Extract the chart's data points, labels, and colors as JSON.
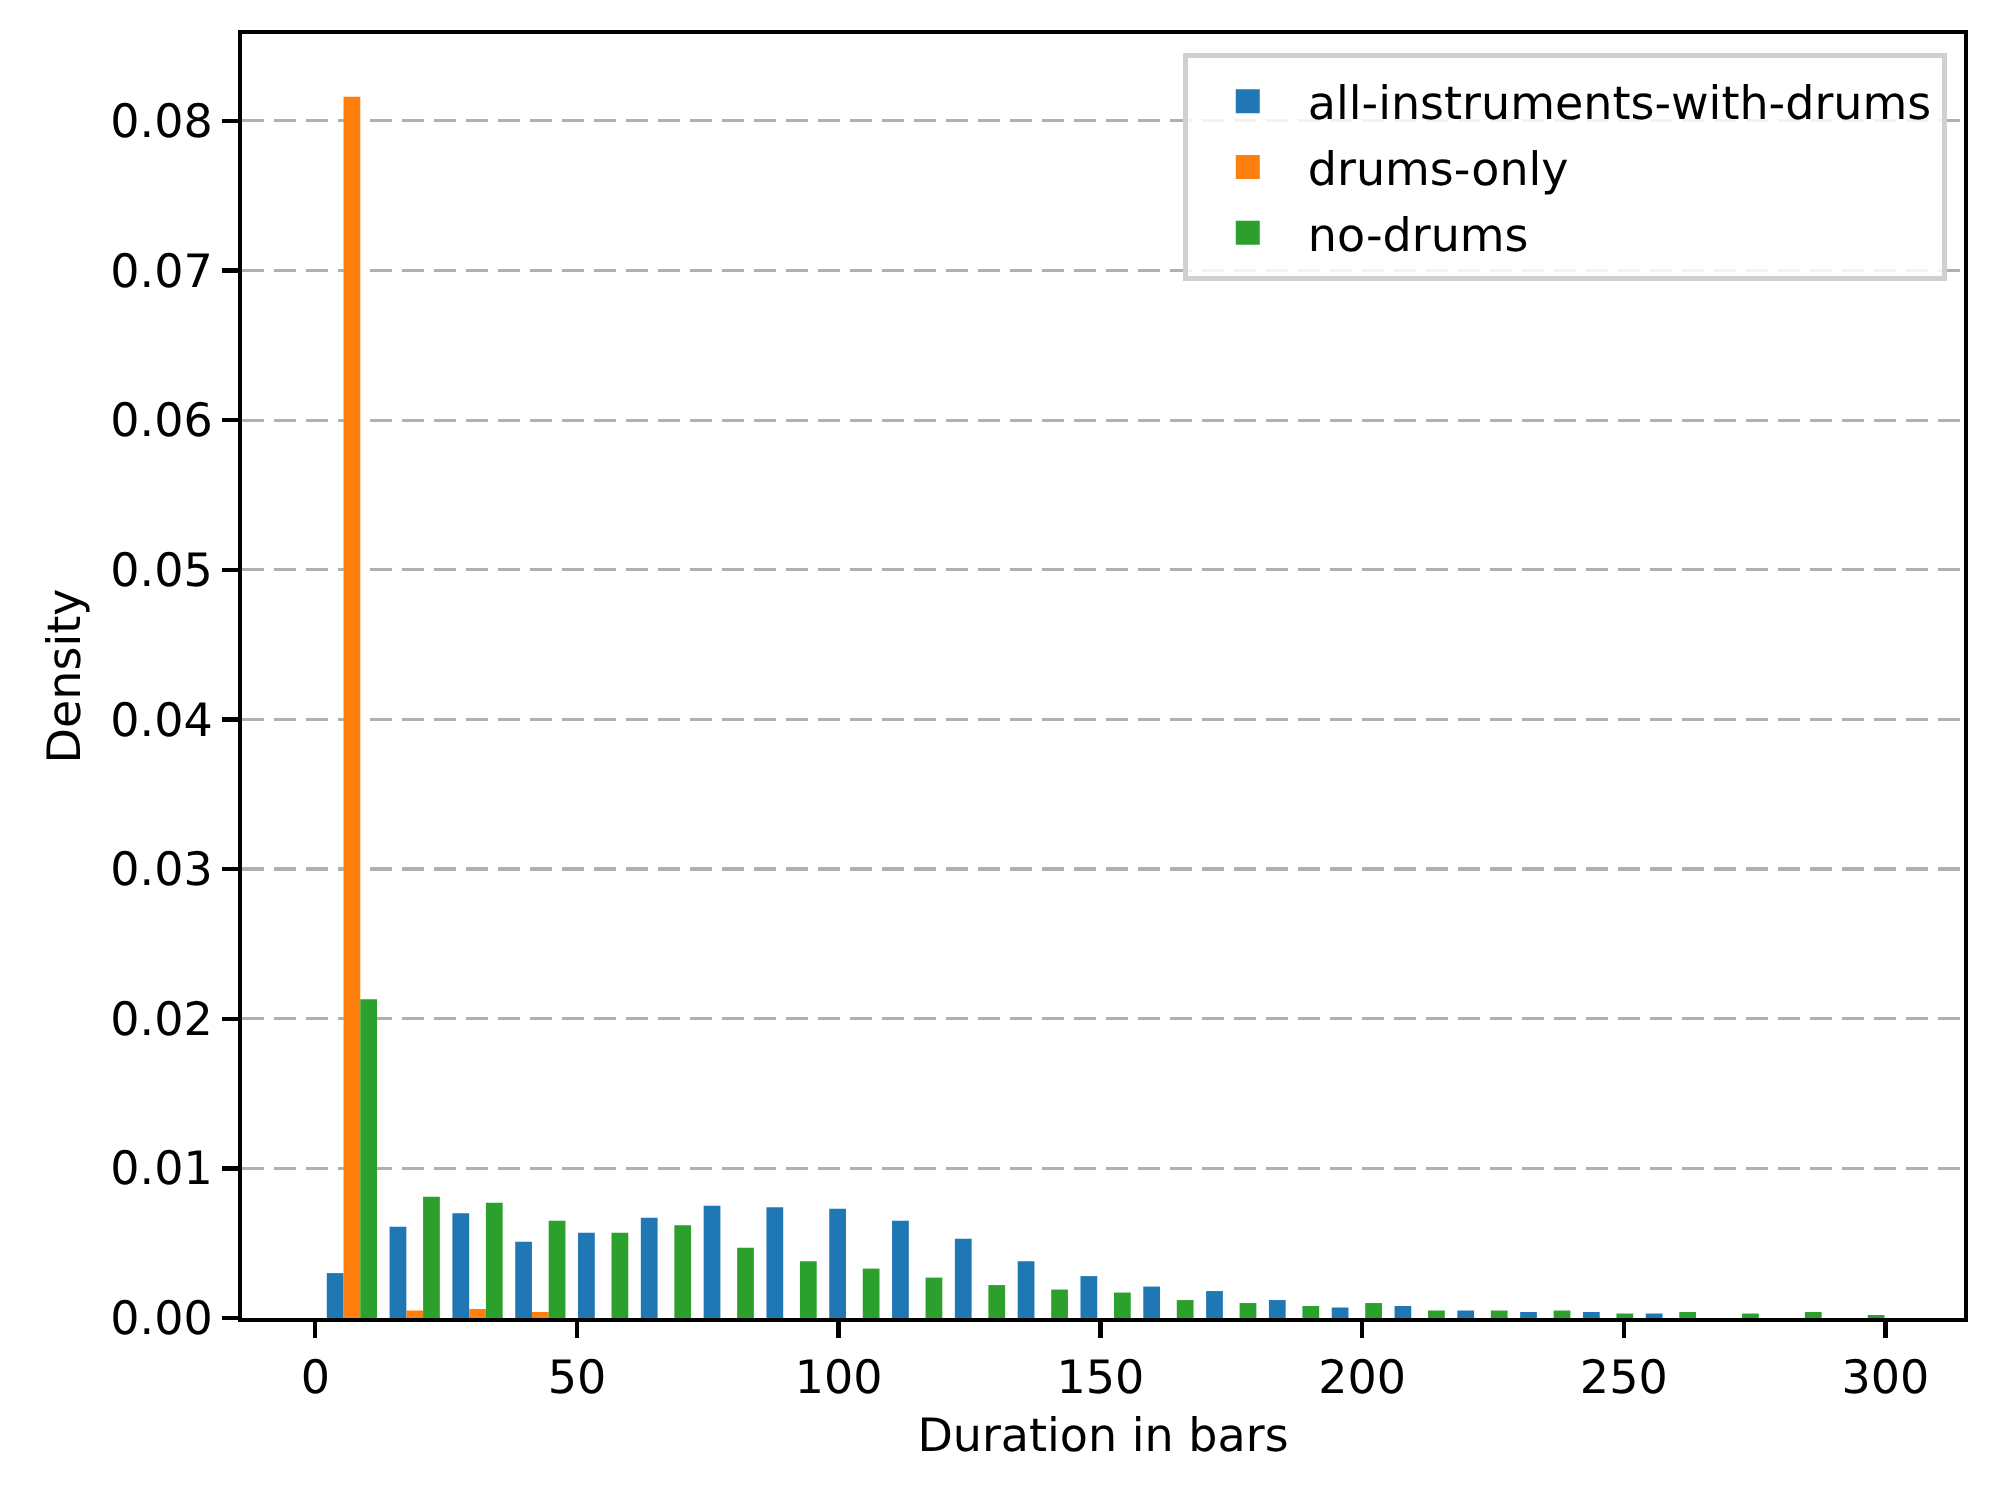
{
  "chart_data": {
    "type": "histogram",
    "xlabel": "Duration in bars",
    "ylabel": "Density",
    "bins": [
      1,
      13,
      25,
      37,
      49,
      61,
      73,
      85,
      97,
      109,
      121,
      133,
      145,
      157,
      169,
      181,
      193,
      205,
      217,
      229,
      241,
      253,
      265,
      277,
      289,
      301
    ],
    "series": [
      {
        "name": "all-instruments-with-drums",
        "color": "#1f77b4",
        "values": [
          0.003,
          0.0061,
          0.007,
          0.0051,
          0.0057,
          0.0067,
          0.0075,
          0.0074,
          0.0073,
          0.0065,
          0.0053,
          0.0038,
          0.0028,
          0.0021,
          0.0018,
          0.0012,
          0.0007,
          0.0008,
          0.0005,
          0.0004,
          0.0004,
          0.0003,
          0,
          0,
          0
        ]
      },
      {
        "name": "drums-only",
        "color": "#ff7f0e",
        "values": [
          0.0816,
          0.0005,
          0.0006,
          0.0004,
          0,
          0,
          0,
          0,
          0,
          0,
          0,
          0,
          0,
          0,
          0,
          0,
          0,
          0,
          0,
          0,
          0,
          0,
          0,
          0,
          0
        ]
      },
      {
        "name": "no-drums",
        "color": "#2ca02c",
        "values": [
          0.0213,
          0.0081,
          0.0077,
          0.0065,
          0.0057,
          0.0062,
          0.0047,
          0.0038,
          0.0033,
          0.0027,
          0.0022,
          0.0019,
          0.0017,
          0.0012,
          0.001,
          0.0008,
          0.001,
          0.0005,
          0.0005,
          0.0005,
          0.0003,
          0.0004,
          0.0003,
          0.0004,
          0.0002
        ]
      }
    ],
    "xlim": [
      -14,
      315
    ],
    "xticks": [
      0,
      50,
      100,
      150,
      200,
      250,
      300
    ],
    "ylim": [
      0,
      0.0858
    ],
    "yticks": [
      {
        "value": 0,
        "label": "0.00"
      },
      {
        "value": 0.01,
        "label": "0.01"
      },
      {
        "value": 0.02,
        "label": "0.02"
      },
      {
        "value": 0.03,
        "label": "0.03"
      },
      {
        "value": 0.04,
        "label": "0.04"
      },
      {
        "value": 0.05,
        "label": "0.05"
      },
      {
        "value": 0.06,
        "label": "0.06"
      },
      {
        "value": 0.07,
        "label": "0.07"
      },
      {
        "value": 0.08,
        "label": "0.08"
      }
    ],
    "grid": "y",
    "legend": "top right"
  }
}
